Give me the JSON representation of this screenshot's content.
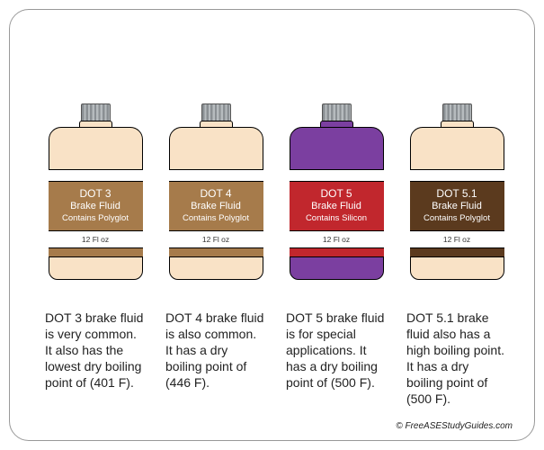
{
  "background_color": "#ffffff",
  "frame_border_color": "#999999",
  "frame_border_radius": 22,
  "credit": "© FreeASEStudyGuides.com",
  "bottles": [
    {
      "body_color": "#f9e2c6",
      "label_color": "#a67b4b",
      "line1": "DOT 3",
      "line2": "Brake Fluid",
      "line3": "Contains Polyglot",
      "size": "12 Fl oz",
      "description": "DOT 3 brake fluid is very common. It also has the lowest dry boiling point of (401 F)."
    },
    {
      "body_color": "#f9e2c6",
      "label_color": "#a67b4b",
      "line1": "DOT 4",
      "line2": "Brake Fluid",
      "line3": "Contains Polyglot",
      "size": "12 Fl oz",
      "description": "DOT 4 brake fluid is also common. It has a dry boiling point of (446 F)."
    },
    {
      "body_color": "#7b3fa0",
      "label_color": "#c1272d",
      "line1": "DOT 5",
      "line2": "Brake Fluid",
      "line3": "Contains Silicon",
      "size": "12 Fl oz",
      "description": "DOT 5 brake fluid is for special applications. It has a dry boiling point of (500 F)."
    },
    {
      "body_color": "#f9e2c6",
      "label_color": "#5b3a1e",
      "line1": "DOT 5.1",
      "line2": "Brake Fluid",
      "line3": "Contains Polyglot",
      "size": "12 Fl oz",
      "description": "DOT 5.1 brake fluid also has a high boiling point. It has a dry boiling point of (500 F)."
    }
  ]
}
